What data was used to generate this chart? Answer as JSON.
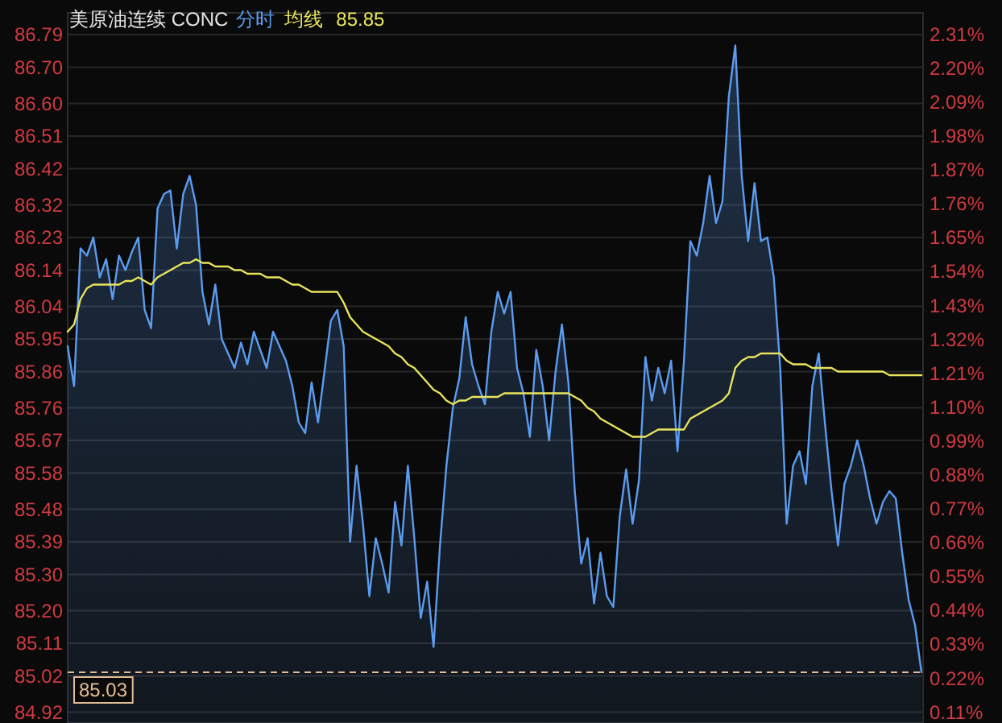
{
  "chart_data": {
    "type": "area",
    "title": "美原油连续 CONC",
    "categories": [
      null,
      null,
      null,
      null,
      null,
      null,
      null,
      null,
      null,
      null,
      null,
      null,
      null,
      null,
      null,
      null,
      null,
      null,
      null,
      null,
      null,
      null,
      null,
      null,
      null,
      null,
      null,
      null,
      null,
      null,
      null,
      null,
      null,
      null,
      null,
      null,
      null,
      null,
      null,
      null,
      null,
      null,
      null,
      null,
      null,
      null,
      null,
      null,
      null,
      null,
      null,
      null,
      null,
      null,
      null,
      null,
      null,
      null,
      null,
      null,
      null,
      null,
      null,
      null,
      null,
      null,
      null,
      null,
      null,
      null,
      null,
      null,
      null,
      null,
      null,
      null,
      null,
      null,
      null,
      null,
      null,
      null,
      null,
      null,
      null,
      null,
      null,
      null,
      null,
      null,
      null,
      null,
      null,
      null,
      null,
      null,
      null,
      null,
      null,
      null,
      null,
      null,
      null,
      null,
      null,
      null,
      null,
      null,
      null,
      null,
      null,
      null,
      null,
      null,
      null,
      null,
      null,
      null,
      null,
      null,
      null,
      null,
      null,
      null,
      null,
      null,
      null,
      null,
      null,
      null,
      null,
      null,
      null,
      null
    ],
    "series": [
      {
        "name": "分时",
        "color": "#5b9cf0",
        "values": [
          85.93,
          85.82,
          86.2,
          86.18,
          86.23,
          86.12,
          86.17,
          86.06,
          86.18,
          86.14,
          86.19,
          86.23,
          86.03,
          85.98,
          86.31,
          86.35,
          86.36,
          86.2,
          86.35,
          86.4,
          86.32,
          86.08,
          85.99,
          86.1,
          85.95,
          85.91,
          85.87,
          85.94,
          85.88,
          85.97,
          85.92,
          85.87,
          85.97,
          85.93,
          85.89,
          85.82,
          85.72,
          85.69,
          85.83,
          85.72,
          85.86,
          86.0,
          86.03,
          85.93,
          85.39,
          85.6,
          85.44,
          85.24,
          85.4,
          85.33,
          85.25,
          85.5,
          85.38,
          85.6,
          85.4,
          85.18,
          85.28,
          85.1,
          85.38,
          85.6,
          85.76,
          85.84,
          86.01,
          85.88,
          85.82,
          85.77,
          85.97,
          86.08,
          86.02,
          86.08,
          85.87,
          85.8,
          85.68,
          85.92,
          85.82,
          85.67,
          85.86,
          85.99,
          85.83,
          85.53,
          85.33,
          85.4,
          85.22,
          85.36,
          85.24,
          85.21,
          85.46,
          85.59,
          85.44,
          85.56,
          85.9,
          85.78,
          85.87,
          85.8,
          85.89,
          85.64,
          85.89,
          86.22,
          86.18,
          86.27,
          86.4,
          86.27,
          86.33,
          86.62,
          86.76,
          86.4,
          86.22,
          86.38,
          86.22,
          86.23,
          86.12,
          85.87,
          85.44,
          85.6,
          85.64,
          85.55,
          85.82,
          85.91,
          85.71,
          85.53,
          85.38,
          85.55,
          85.6,
          85.67,
          85.6,
          85.51,
          85.44,
          85.5,
          85.53,
          85.51,
          85.36,
          85.23,
          85.16,
          85.03
        ]
      },
      {
        "name": "均线",
        "type": "line",
        "color": "#e8e45c",
        "values": [
          85.97,
          85.99,
          86.06,
          86.09,
          86.1,
          86.1,
          86.1,
          86.1,
          86.1,
          86.11,
          86.11,
          86.12,
          86.11,
          86.1,
          86.12,
          86.13,
          86.14,
          86.15,
          86.16,
          86.16,
          86.17,
          86.16,
          86.16,
          86.15,
          86.15,
          86.15,
          86.14,
          86.14,
          86.13,
          86.13,
          86.13,
          86.12,
          86.12,
          86.12,
          86.11,
          86.1,
          86.1,
          86.09,
          86.08,
          86.08,
          86.08,
          86.08,
          86.08,
          86.05,
          86.01,
          85.99,
          85.97,
          85.96,
          85.95,
          85.94,
          85.93,
          85.91,
          85.9,
          85.88,
          85.87,
          85.85,
          85.83,
          85.81,
          85.8,
          85.78,
          85.77,
          85.78,
          85.78,
          85.79,
          85.79,
          85.79,
          85.79,
          85.79,
          85.8,
          85.8,
          85.8,
          85.8,
          85.8,
          85.8,
          85.8,
          85.8,
          85.8,
          85.8,
          85.8,
          85.79,
          85.78,
          85.76,
          85.75,
          85.73,
          85.72,
          85.71,
          85.7,
          85.69,
          85.68,
          85.68,
          85.68,
          85.69,
          85.7,
          85.7,
          85.7,
          85.7,
          85.7,
          85.73,
          85.74,
          85.75,
          85.76,
          85.77,
          85.78,
          85.8,
          85.87,
          85.89,
          85.9,
          85.9,
          85.91,
          85.91,
          85.91,
          85.91,
          85.89,
          85.88,
          85.88,
          85.88,
          85.87,
          85.87,
          85.87,
          85.87,
          85.86,
          85.86,
          85.86,
          85.86,
          85.86,
          85.86,
          85.86,
          85.86,
          85.85,
          85.85,
          85.85,
          85.85,
          85.85,
          85.85
        ]
      }
    ],
    "ylim": [
      84.89,
      86.85
    ],
    "yticks": [
      84.92,
      85.02,
      85.11,
      {
        "value": 85.2,
        "label": "85.20"
      },
      {
        "value": 85.3,
        "label": "85.30"
      },
      85.39,
      85.48,
      85.58,
      85.67,
      85.76,
      85.86,
      85.95,
      86.04,
      86.14,
      86.23,
      86.32,
      86.42,
      86.51,
      {
        "value": 86.6,
        "label": "86.60"
      },
      {
        "value": 86.7,
        "label": "86.70"
      },
      86.79
    ],
    "y2lim": [
      0.075,
      2.38
    ],
    "y2ticks": [
      {
        "value": 0.11,
        "label": "0.11%"
      },
      {
        "value": 0.22,
        "label": "0.22%"
      },
      {
        "value": 0.33,
        "label": "0.33%"
      },
      {
        "value": 0.44,
        "label": "0.44%"
      },
      {
        "value": 0.55,
        "label": "0.55%"
      },
      {
        "value": 0.66,
        "label": "0.66%"
      },
      {
        "value": 0.77,
        "label": "0.77%"
      },
      {
        "value": 0.88,
        "label": "0.88%"
      },
      {
        "value": 0.99,
        "label": "0.99%"
      },
      {
        "value": 1.1,
        "label": "1.10%"
      },
      {
        "value": 1.21,
        "label": "1.21%"
      },
      {
        "value": 1.32,
        "label": "1.32%"
      },
      {
        "value": 1.43,
        "label": "1.43%"
      },
      {
        "value": 1.54,
        "label": "1.54%"
      },
      {
        "value": 1.65,
        "label": "1.65%"
      },
      {
        "value": 1.76,
        "label": "1.76%"
      },
      {
        "value": 1.87,
        "label": "1.87%"
      },
      {
        "value": 1.98,
        "label": "1.98%"
      },
      {
        "value": 2.09,
        "label": "2.09%"
      },
      {
        "value": 2.2,
        "label": "2.20%"
      },
      {
        "value": 2.31,
        "label": "2.31%"
      }
    ],
    "grid": "y",
    "legend": "top left",
    "ref_lines": [
      {
        "axis": "y",
        "value": 85.03,
        "label": "85.03",
        "color": "#e2bc94",
        "line_style": "dashed"
      }
    ],
    "annotations": [
      "85.85"
    ]
  }
}
